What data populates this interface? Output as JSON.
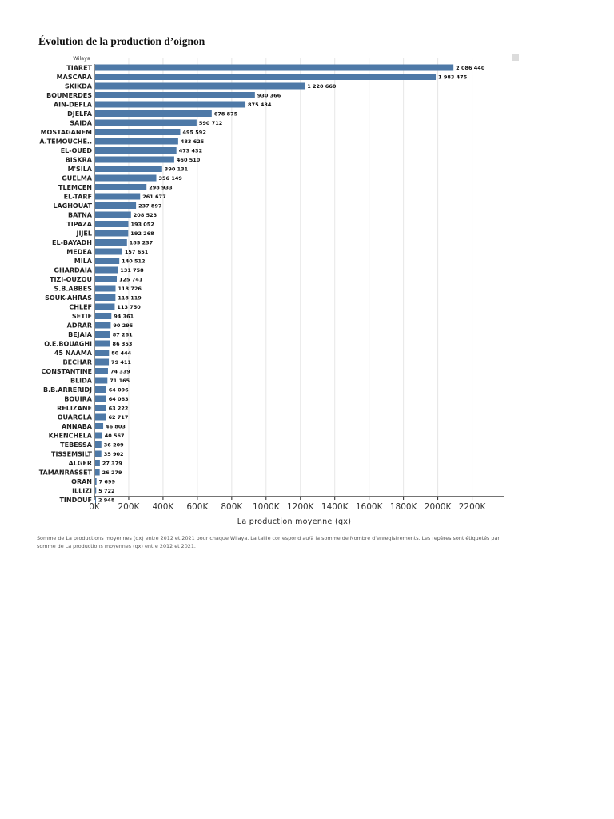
{
  "title": "Évolution de la production d’oignon",
  "footnote": "Somme de La productions moyennes (qx) entre 2012 et 2021 pour chaque Wilaya. La taille correspond au/à la somme de Nombre d'enregistrements. Les repères sont étiquetés par somme de La productions moyennes (qx) entre 2012 et 2021.",
  "chart_data": {
    "type": "bar",
    "orientation": "horizontal",
    "title": "Évolution de la production d’oignon",
    "category_header": "Wilaya",
    "xlabel": "La production moyenne (qx)",
    "ylabel": "Wilaya",
    "xlim": [
      0,
      2300000
    ],
    "x_ticks": [
      0,
      200000,
      400000,
      600000,
      800000,
      1000000,
      1200000,
      1400000,
      1600000,
      1800000,
      2000000,
      2200000
    ],
    "x_tick_labels": [
      "0K",
      "200K",
      "400K",
      "600K",
      "800K",
      "1000K",
      "1200K",
      "1400K",
      "1600K",
      "1800K",
      "2000K",
      "2200K"
    ],
    "bar_color": "#4e79a7",
    "categories": [
      "TIARET",
      "MASCARA",
      "SKIKDA",
      "BOUMERDES",
      "AIN-DEFLA",
      "DJELFA",
      "SAIDA",
      "MOSTAGANEM",
      "A.TEMOUCHE..",
      "EL-OUED",
      "BISKRA",
      "M'SILA",
      "GUELMA",
      "TLEMCEN",
      "EL-TARF",
      "LAGHOUAT",
      "BATNA",
      "TIPAZA",
      "JIJEL",
      "EL-BAYADH",
      "MEDEA",
      "MILA",
      "GHARDAIA",
      "TIZI-OUZOU",
      "S.B.ABBES",
      "SOUK-AHRAS",
      "CHLEF",
      "SETIF",
      "ADRAR",
      "BEJAIA",
      "O.E.BOUAGHI",
      "45 NAAMA",
      "BECHAR",
      "CONSTANTINE",
      "BLIDA",
      "B.B.ARRERIDJ",
      "BOUIRA",
      "RELIZANE",
      "OUARGLA",
      "ANNABA",
      "KHENCHELA",
      "TEBESSA",
      "TISSEMSILT",
      "ALGER",
      "TAMANRASSET",
      "ORAN",
      "ILLIZI",
      "TINDOUF"
    ],
    "values": [
      2086440,
      1983475,
      1220660,
      930366,
      875434,
      678875,
      590712,
      495592,
      483625,
      473432,
      460510,
      390131,
      356149,
      298933,
      261677,
      237897,
      208523,
      193052,
      192268,
      185237,
      157651,
      140512,
      131758,
      125741,
      118726,
      118119,
      113750,
      94361,
      90295,
      87281,
      86353,
      80444,
      79411,
      74339,
      71165,
      64096,
      64083,
      63222,
      62717,
      46803,
      40567,
      36209,
      35902,
      27379,
      26279,
      7699,
      5722,
      2948
    ],
    "value_labels": [
      "2 086 440",
      "1 983 475",
      "1 220 660",
      "930 366",
      "875 434",
      "678 875",
      "590 712",
      "495 592",
      "483 625",
      "473 432",
      "460 510",
      "390 131",
      "356 149",
      "298 933",
      "261 677",
      "237 897",
      "208 523",
      "193 052",
      "192 268",
      "185 237",
      "157 651",
      "140 512",
      "131 758",
      "125 741",
      "118 726",
      "118 119",
      "113 750",
      "94 361",
      "90 295",
      "87 281",
      "86 353",
      "80 444",
      "79 411",
      "74 339",
      "71 165",
      "64 096",
      "64 083",
      "63 222",
      "62 717",
      "46 803",
      "40 567",
      "36 209",
      "35 902",
      "27 379",
      "26 279",
      "7 699",
      "5 722",
      "2 948"
    ]
  }
}
